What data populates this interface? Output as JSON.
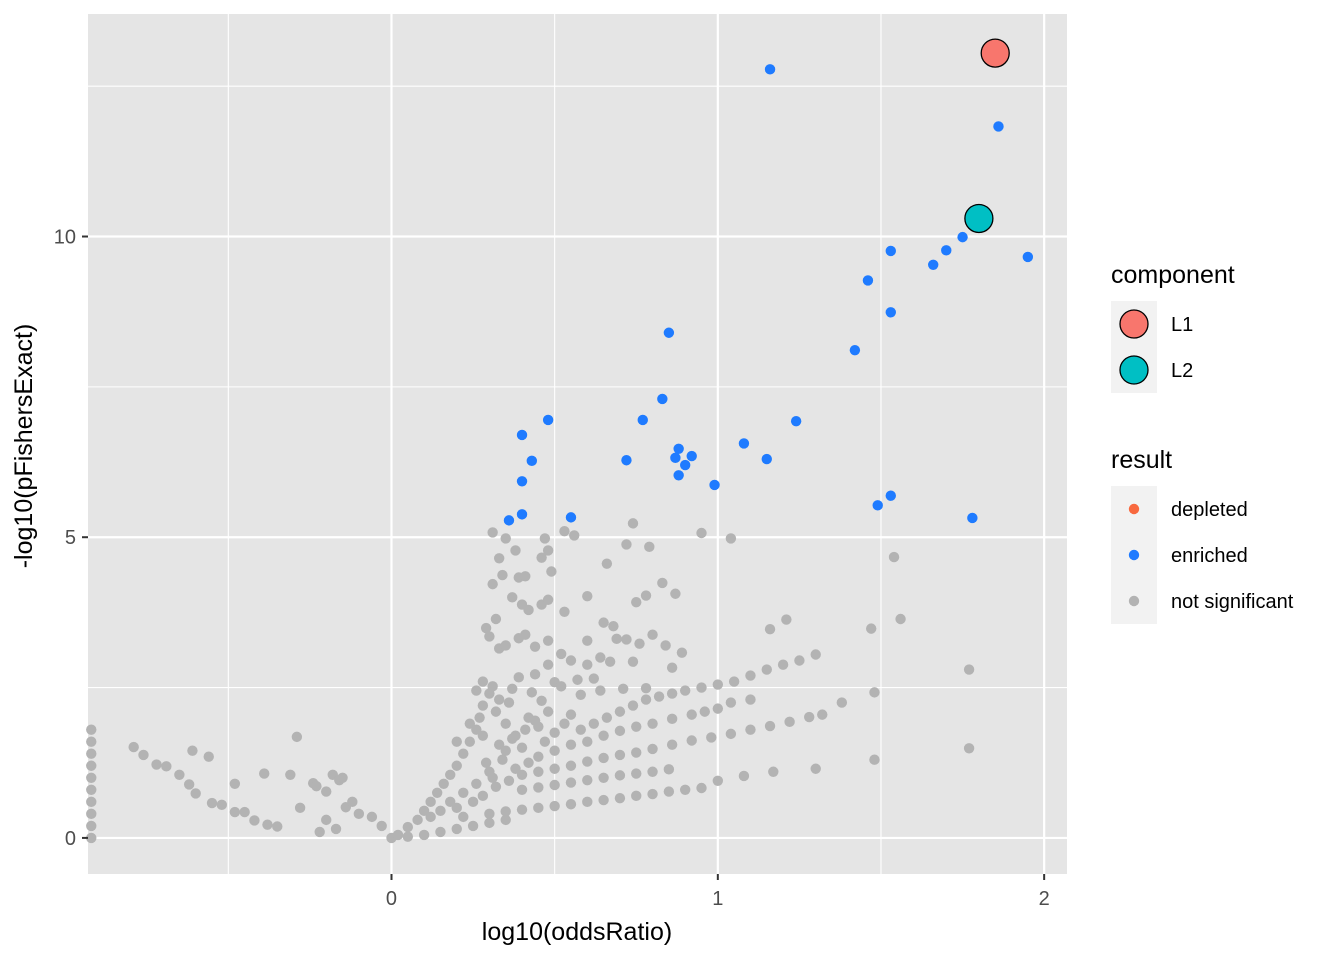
{
  "chart_data": {
    "type": "scatter",
    "title": "",
    "xlabel": "log10(oddsRatio)",
    "ylabel": "-log10(pFishersExact)",
    "xlim": [
      -0.93,
      2.07
    ],
    "ylim": [
      -0.6,
      13.7
    ],
    "x_ticks": [
      0,
      1,
      2
    ],
    "x_tick_labels": [
      "0",
      "1",
      "2"
    ],
    "y_ticks": [
      0,
      5,
      10
    ],
    "y_tick_labels": [
      "0",
      "5",
      "10"
    ],
    "grid": true,
    "legend_position": "right",
    "legends": [
      {
        "title": "component",
        "entries": [
          {
            "label": "L1",
            "color": "#F8766D"
          },
          {
            "label": "L2",
            "color": "#00BFC4"
          }
        ]
      },
      {
        "title": "result",
        "entries": [
          {
            "label": "depleted",
            "color": "#F8693F"
          },
          {
            "label": "enriched",
            "color": "#1F7BFF"
          },
          {
            "label": "not significant",
            "color": "#B3B3B3"
          }
        ]
      }
    ],
    "colors": {
      "panel_background": "#E5E5E5",
      "gridline": "#FFFFFF",
      "enriched": "#1F7BFF",
      "not_significant": "#B3B3B3",
      "L1": "#F8766D",
      "L2": "#00BFC4"
    },
    "series": [
      {
        "name": "enriched",
        "color": "#1F7BFF",
        "points": [
          [
            1.16,
            12.78
          ],
          [
            1.86,
            11.83
          ],
          [
            1.95,
            9.66
          ],
          [
            1.53,
            9.76
          ],
          [
            1.7,
            9.77
          ],
          [
            1.75,
            9.99
          ],
          [
            1.66,
            9.53
          ],
          [
            1.46,
            9.27
          ],
          [
            1.53,
            8.74
          ],
          [
            1.42,
            8.11
          ],
          [
            0.85,
            8.4
          ],
          [
            0.83,
            7.3
          ],
          [
            0.77,
            6.95
          ],
          [
            0.48,
            6.95
          ],
          [
            1.24,
            6.93
          ],
          [
            0.4,
            6.7
          ],
          [
            1.08,
            6.56
          ],
          [
            0.88,
            6.47
          ],
          [
            0.92,
            6.35
          ],
          [
            0.87,
            6.32
          ],
          [
            0.72,
            6.28
          ],
          [
            1.15,
            6.3
          ],
          [
            0.43,
            6.27
          ],
          [
            0.9,
            6.2
          ],
          [
            0.88,
            6.03
          ],
          [
            0.99,
            5.87
          ],
          [
            0.4,
            5.93
          ],
          [
            0.4,
            5.38
          ],
          [
            0.36,
            5.28
          ],
          [
            0.55,
            5.33
          ],
          [
            1.53,
            5.69
          ],
          [
            1.49,
            5.53
          ],
          [
            1.78,
            5.32
          ]
        ]
      },
      {
        "name": "not significant",
        "color": "#B3B3B3",
        "points": [
          [
            -0.92,
            1.8
          ],
          [
            -0.92,
            1.6
          ],
          [
            -0.92,
            1.4
          ],
          [
            -0.92,
            1.2
          ],
          [
            -0.92,
            1.0
          ],
          [
            -0.92,
            0.8
          ],
          [
            -0.92,
            0.6
          ],
          [
            -0.92,
            0.4
          ],
          [
            -0.92,
            0.2
          ],
          [
            -0.92,
            0.0
          ],
          [
            -0.79,
            1.51
          ],
          [
            -0.76,
            1.38
          ],
          [
            -0.72,
            1.22
          ],
          [
            -0.69,
            1.19
          ],
          [
            -0.65,
            1.05
          ],
          [
            -0.62,
            0.89
          ],
          [
            -0.6,
            0.74
          ],
          [
            -0.61,
            1.45
          ],
          [
            -0.56,
            1.35
          ],
          [
            -0.55,
            0.58
          ],
          [
            -0.52,
            0.55
          ],
          [
            -0.48,
            0.43
          ],
          [
            -0.45,
            0.43
          ],
          [
            -0.42,
            0.29
          ],
          [
            -0.38,
            0.22
          ],
          [
            -0.35,
            0.19
          ],
          [
            -0.48,
            0.9
          ],
          [
            -0.39,
            1.07
          ],
          [
            -0.31,
            1.05
          ],
          [
            -0.28,
            0.5
          ],
          [
            -0.29,
            1.68
          ],
          [
            -0.24,
            0.91
          ],
          [
            -0.23,
            0.86
          ],
          [
            -0.2,
            0.77
          ],
          [
            -0.18,
            1.05
          ],
          [
            -0.16,
            0.96
          ],
          [
            -0.15,
            1.0
          ],
          [
            -0.14,
            0.51
          ],
          [
            -0.2,
            0.3
          ],
          [
            -0.17,
            0.15
          ],
          [
            -0.22,
            0.1
          ],
          [
            -0.12,
            0.6
          ],
          [
            -0.1,
            0.4
          ],
          [
            -0.06,
            0.35
          ],
          [
            -0.03,
            0.2
          ],
          [
            0.31,
            5.08
          ],
          [
            0.35,
            4.98
          ],
          [
            0.38,
            4.78
          ],
          [
            0.33,
            4.65
          ],
          [
            0.47,
            4.98
          ],
          [
            0.48,
            4.78
          ],
          [
            0.46,
            4.66
          ],
          [
            0.49,
            4.43
          ],
          [
            0.53,
            5.1
          ],
          [
            0.56,
            5.03
          ],
          [
            0.74,
            5.23
          ],
          [
            0.72,
            4.88
          ],
          [
            0.79,
            4.84
          ],
          [
            0.66,
            4.56
          ],
          [
            0.95,
            5.07
          ],
          [
            1.04,
            4.98
          ],
          [
            0.31,
            4.22
          ],
          [
            0.34,
            4.37
          ],
          [
            0.39,
            4.33
          ],
          [
            0.41,
            4.35
          ],
          [
            0.37,
            4.0
          ],
          [
            0.4,
            3.88
          ],
          [
            0.42,
            3.79
          ],
          [
            0.46,
            3.88
          ],
          [
            0.48,
            3.96
          ],
          [
            0.53,
            3.76
          ],
          [
            0.6,
            4.02
          ],
          [
            0.75,
            3.92
          ],
          [
            0.78,
            4.03
          ],
          [
            0.83,
            4.24
          ],
          [
            0.87,
            4.06
          ],
          [
            0.29,
            3.49
          ],
          [
            0.32,
            3.64
          ],
          [
            0.3,
            3.35
          ],
          [
            0.33,
            3.15
          ],
          [
            0.35,
            3.2
          ],
          [
            0.39,
            3.32
          ],
          [
            0.41,
            3.38
          ],
          [
            0.44,
            3.18
          ],
          [
            0.48,
            3.28
          ],
          [
            0.52,
            3.06
          ],
          [
            0.55,
            2.95
          ],
          [
            0.6,
            3.28
          ],
          [
            0.65,
            3.58
          ],
          [
            0.68,
            3.52
          ],
          [
            0.69,
            3.31
          ],
          [
            0.72,
            3.3
          ],
          [
            0.76,
            3.23
          ],
          [
            0.8,
            3.38
          ],
          [
            0.84,
            3.2
          ],
          [
            0.89,
            3.08
          ],
          [
            0.86,
            2.83
          ],
          [
            0.64,
            3.0
          ],
          [
            0.67,
            2.93
          ],
          [
            0.6,
            2.88
          ],
          [
            0.74,
            2.93
          ],
          [
            0.57,
            2.63
          ],
          [
            0.62,
            2.65
          ],
          [
            1.16,
            3.47
          ],
          [
            1.21,
            3.63
          ],
          [
            1.47,
            3.48
          ],
          [
            1.56,
            3.64
          ],
          [
            1.54,
            4.67
          ],
          [
            1.77,
            2.8
          ],
          [
            1.77,
            1.49
          ],
          [
            1.48,
            1.3
          ],
          [
            1.3,
            1.15
          ],
          [
            1.17,
            1.1
          ],
          [
            1.08,
            1.03
          ],
          [
            1.0,
            0.95
          ],
          [
            0.48,
            2.88
          ],
          [
            0.5,
            2.59
          ],
          [
            0.44,
            2.72
          ],
          [
            0.39,
            2.67
          ],
          [
            0.37,
            2.48
          ],
          [
            0.43,
            2.42
          ],
          [
            0.46,
            2.28
          ],
          [
            0.52,
            2.52
          ],
          [
            0.58,
            2.38
          ],
          [
            0.64,
            2.45
          ],
          [
            0.71,
            2.48
          ],
          [
            0.78,
            2.49
          ],
          [
            0.31,
            2.52
          ],
          [
            0.33,
            2.3
          ],
          [
            0.28,
            2.6
          ],
          [
            0.26,
            2.45
          ],
          [
            0.05,
            0.18
          ],
          [
            0.08,
            0.3
          ],
          [
            0.1,
            0.45
          ],
          [
            0.12,
            0.6
          ],
          [
            0.14,
            0.75
          ],
          [
            0.16,
            0.9
          ],
          [
            0.18,
            1.05
          ],
          [
            0.2,
            1.2
          ],
          [
            0.22,
            1.4
          ],
          [
            0.24,
            1.6
          ],
          [
            0.26,
            1.8
          ],
          [
            0.27,
            2.0
          ],
          [
            0.28,
            2.2
          ],
          [
            0.3,
            2.4
          ],
          [
            0.32,
            2.1
          ],
          [
            0.35,
            1.9
          ],
          [
            0.38,
            1.7
          ],
          [
            0.4,
            1.5
          ],
          [
            0.34,
            1.3
          ],
          [
            0.3,
            1.1
          ],
          [
            0.26,
            0.9
          ],
          [
            0.22,
            0.75
          ],
          [
            0.18,
            0.6
          ],
          [
            0.15,
            0.45
          ],
          [
            0.12,
            0.35
          ],
          [
            0.2,
            1.6
          ],
          [
            0.24,
            1.9
          ],
          [
            0.28,
            1.7
          ],
          [
            0.36,
            2.25
          ],
          [
            0.42,
            2.0
          ],
          [
            0.45,
            1.85
          ],
          [
            0.47,
            1.6
          ],
          [
            0.5,
            1.75
          ],
          [
            0.53,
            1.9
          ],
          [
            0.55,
            2.05
          ],
          [
            0.58,
            1.8
          ],
          [
            0.62,
            1.9
          ],
          [
            0.66,
            2.0
          ],
          [
            0.7,
            2.1
          ],
          [
            0.74,
            2.2
          ],
          [
            0.78,
            2.3
          ],
          [
            0.82,
            2.35
          ],
          [
            0.86,
            2.4
          ],
          [
            0.9,
            2.45
          ],
          [
            0.95,
            2.5
          ],
          [
            1.0,
            2.55
          ],
          [
            1.05,
            2.6
          ],
          [
            1.1,
            2.7
          ],
          [
            1.15,
            2.8
          ],
          [
            1.2,
            2.88
          ],
          [
            1.25,
            2.95
          ],
          [
            1.3,
            3.05
          ],
          [
            0.45,
            1.35
          ],
          [
            0.5,
            1.45
          ],
          [
            0.55,
            1.55
          ],
          [
            0.6,
            1.6
          ],
          [
            0.65,
            1.7
          ],
          [
            0.7,
            1.78
          ],
          [
            0.75,
            1.85
          ],
          [
            0.8,
            1.9
          ],
          [
            0.86,
            1.98
          ],
          [
            0.92,
            2.05
          ],
          [
            0.96,
            2.1
          ],
          [
            1.0,
            2.15
          ],
          [
            1.04,
            2.25
          ],
          [
            1.1,
            2.3
          ],
          [
            0.4,
            1.05
          ],
          [
            0.45,
            1.1
          ],
          [
            0.5,
            1.15
          ],
          [
            0.55,
            1.2
          ],
          [
            0.6,
            1.27
          ],
          [
            0.65,
            1.33
          ],
          [
            0.7,
            1.38
          ],
          [
            0.75,
            1.42
          ],
          [
            0.8,
            1.48
          ],
          [
            0.86,
            1.55
          ],
          [
            0.92,
            1.62
          ],
          [
            0.98,
            1.67
          ],
          [
            1.04,
            1.73
          ],
          [
            1.1,
            1.8
          ],
          [
            1.16,
            1.86
          ],
          [
            1.22,
            1.93
          ],
          [
            1.28,
            2.01
          ],
          [
            1.32,
            2.05
          ],
          [
            1.38,
            2.25
          ],
          [
            1.48,
            2.42
          ],
          [
            0.4,
            0.8
          ],
          [
            0.45,
            0.84
          ],
          [
            0.5,
            0.88
          ],
          [
            0.55,
            0.92
          ],
          [
            0.6,
            0.96
          ],
          [
            0.65,
            1.0
          ],
          [
            0.7,
            1.04
          ],
          [
            0.75,
            1.07
          ],
          [
            0.8,
            1.1
          ],
          [
            0.85,
            1.14
          ],
          [
            0.3,
            0.4
          ],
          [
            0.35,
            0.44
          ],
          [
            0.4,
            0.47
          ],
          [
            0.45,
            0.5
          ],
          [
            0.5,
            0.53
          ],
          [
            0.55,
            0.56
          ],
          [
            0.6,
            0.6
          ],
          [
            0.65,
            0.63
          ],
          [
            0.7,
            0.66
          ],
          [
            0.75,
            0.7
          ],
          [
            0.8,
            0.73
          ],
          [
            0.85,
            0.77
          ],
          [
            0.9,
            0.8
          ],
          [
            0.95,
            0.83
          ],
          [
            0.35,
            0.3
          ],
          [
            0.3,
            0.25
          ],
          [
            0.25,
            0.2
          ],
          [
            0.2,
            0.15
          ],
          [
            0.15,
            0.1
          ],
          [
            0.1,
            0.05
          ],
          [
            0.05,
            0.02
          ],
          [
            0.0,
            0.0
          ],
          [
            0.02,
            0.05
          ],
          [
            0.2,
            0.5
          ],
          [
            0.22,
            0.35
          ],
          [
            0.25,
            0.6
          ],
          [
            0.28,
            0.7
          ],
          [
            0.32,
            0.85
          ],
          [
            0.36,
            0.95
          ],
          [
            0.38,
            1.15
          ],
          [
            0.42,
            1.25
          ],
          [
            0.33,
            1.55
          ],
          [
            0.37,
            1.65
          ],
          [
            0.41,
            1.8
          ],
          [
            0.44,
            1.95
          ],
          [
            0.48,
            2.1
          ],
          [
            0.35,
            1.45
          ],
          [
            0.29,
            1.25
          ],
          [
            0.31,
            1.0
          ]
        ]
      },
      {
        "name": "L1",
        "color": "#F8766D",
        "points": [
          [
            1.85,
            13.05
          ]
        ]
      },
      {
        "name": "L2",
        "color": "#00BFC4",
        "points": [
          [
            1.8,
            10.3
          ]
        ]
      }
    ]
  }
}
